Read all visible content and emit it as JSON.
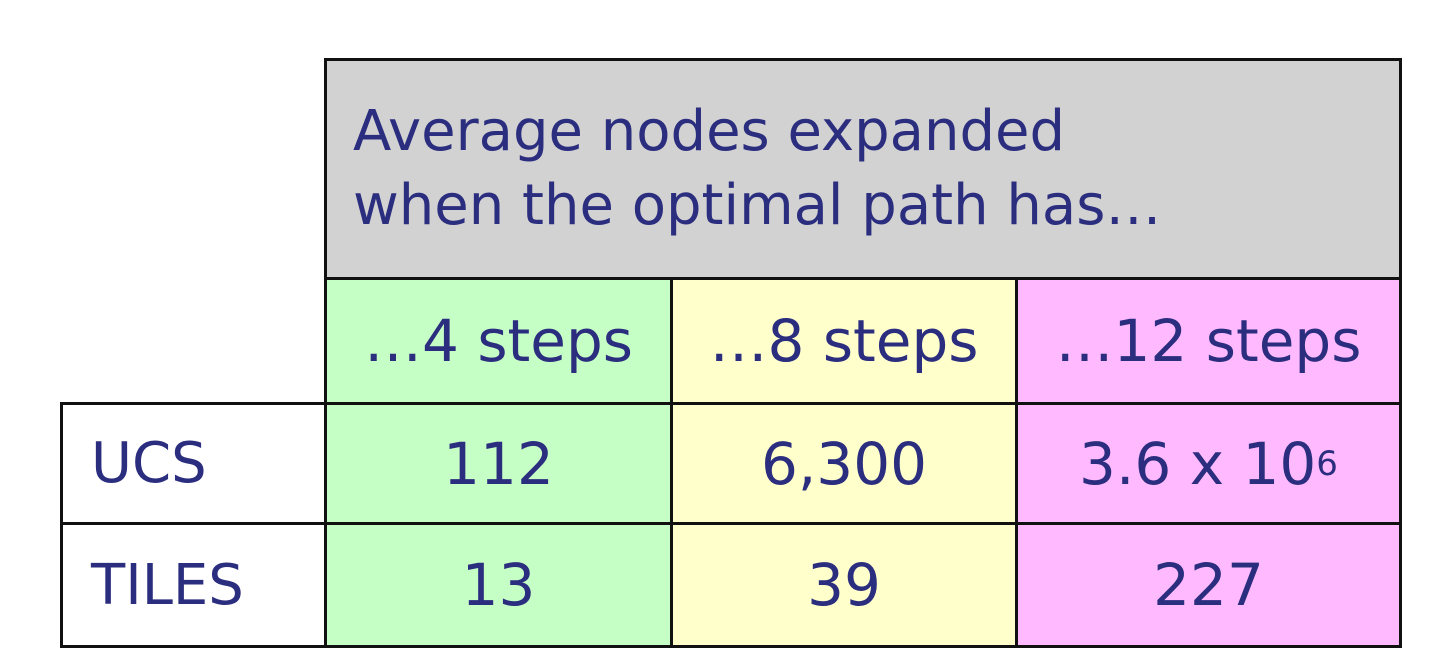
{
  "chart_data": {
    "type": "table",
    "header": {
      "line1": "Average nodes expanded",
      "line2": "when the optimal path has…"
    },
    "columns": [
      {
        "label": "…4 steps",
        "color": "#c6ffc6"
      },
      {
        "label": "…8 steps",
        "color": "#ffffcc"
      },
      {
        "label": "…12 steps",
        "color": "#ffbaff"
      }
    ],
    "rows": [
      {
        "label": "UCS",
        "values": [
          {
            "text": "112"
          },
          {
            "text": "6,300"
          },
          {
            "base": "3.6 x 10",
            "exp": "6"
          }
        ]
      },
      {
        "label": "TILES",
        "values": [
          {
            "text": "13"
          },
          {
            "text": "39"
          },
          {
            "text": "227"
          }
        ]
      }
    ]
  }
}
